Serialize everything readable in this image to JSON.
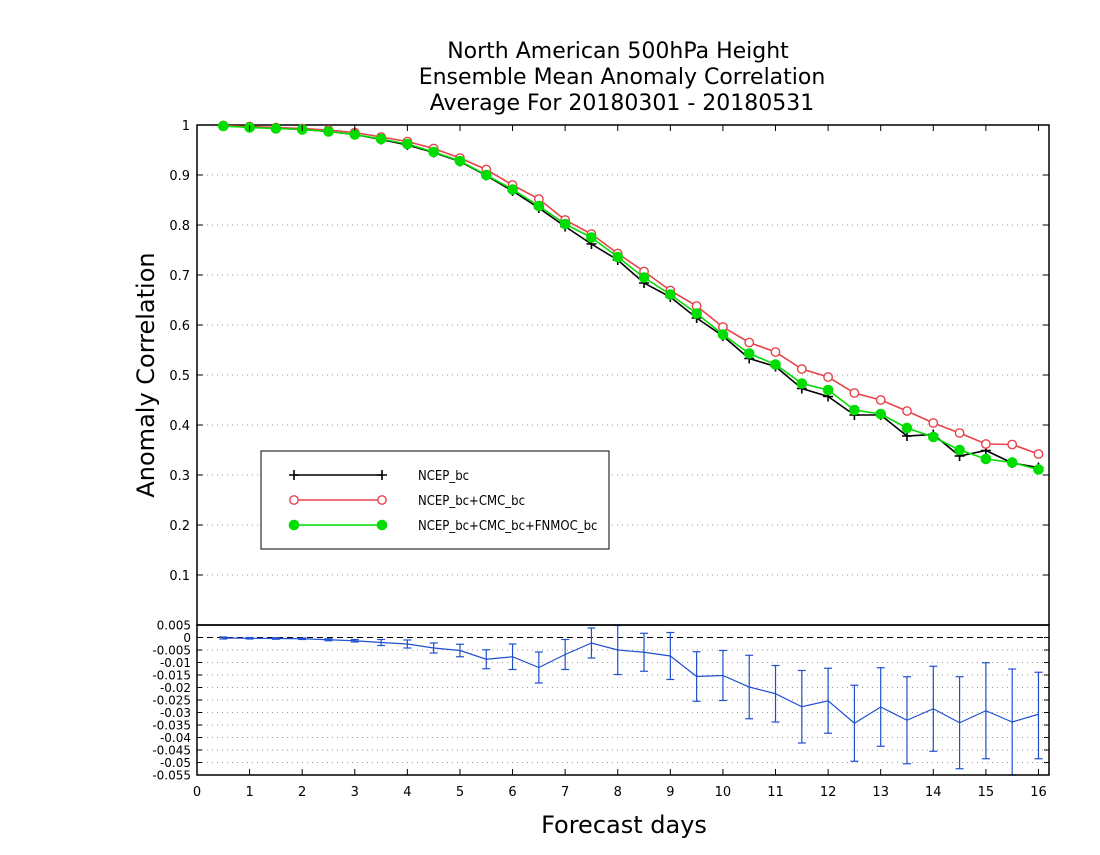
{
  "chart_data": [
    {
      "type": "line",
      "title_lines": [
        "North American 500hPa Height",
        "Ensemble Mean Anomaly Correlation",
        "Average For 20180301 - 20180531"
      ],
      "xlabel": "Forecast days",
      "ylabel": "Anomaly Correlation",
      "xlim": [
        0,
        16.2
      ],
      "ylim": [
        0,
        1
      ],
      "x_ticks": [
        "0",
        "1",
        "2",
        "3",
        "4",
        "5",
        "6",
        "7",
        "8",
        "9",
        "10",
        "11",
        "12",
        "13",
        "14",
        "15",
        "16"
      ],
      "y_ticks": [
        "0.1",
        "0.2",
        "0.3",
        "0.4",
        "0.5",
        "0.6",
        "0.7",
        "0.8",
        "0.9",
        "1"
      ],
      "grid": true,
      "legend_position": "lower-left",
      "x": [
        0.5,
        1,
        1.5,
        2,
        2.5,
        3,
        3.5,
        4,
        4.5,
        5,
        5.5,
        6,
        6.5,
        7,
        7.5,
        8,
        8.5,
        9,
        9.5,
        10,
        10.5,
        11,
        11.5,
        12,
        12.5,
        13,
        13.5,
        14,
        14.5,
        15,
        15.5,
        16
      ],
      "series": [
        {
          "name": "NCEP_bc",
          "color": "#000000",
          "marker": "plus",
          "values": [
            0.998,
            0.996,
            0.994,
            0.991,
            0.987,
            0.981,
            0.971,
            0.96,
            0.945,
            0.927,
            0.899,
            0.868,
            0.834,
            0.797,
            0.762,
            0.73,
            0.684,
            0.656,
            0.614,
            0.578,
            0.533,
            0.517,
            0.473,
            0.457,
            0.42,
            0.42,
            0.378,
            0.381,
            0.338,
            0.349,
            0.324,
            0.315
          ]
        },
        {
          "name": "NCEP_bc+CMC_bc",
          "color": "#e8424a",
          "marker": "open-circle",
          "values": [
            0.999,
            0.997,
            0.995,
            0.993,
            0.99,
            0.985,
            0.976,
            0.967,
            0.953,
            0.934,
            0.911,
            0.88,
            0.852,
            0.81,
            0.782,
            0.743,
            0.707,
            0.669,
            0.638,
            0.596,
            0.565,
            0.546,
            0.512,
            0.496,
            0.464,
            0.45,
            0.428,
            0.404,
            0.384,
            0.362,
            0.361,
            0.342
          ]
        },
        {
          "name": "NCEP_bc+CMC_bc+FNMOC_bc",
          "color": "#00dd00",
          "marker": "filled-circle",
          "values": [
            0.998,
            0.995,
            0.993,
            0.991,
            0.987,
            0.981,
            0.972,
            0.962,
            0.946,
            0.928,
            0.9,
            0.871,
            0.838,
            0.802,
            0.775,
            0.736,
            0.695,
            0.661,
            0.623,
            0.581,
            0.543,
            0.521,
            0.483,
            0.47,
            0.43,
            0.422,
            0.394,
            0.376,
            0.35,
            0.332,
            0.325,
            0.311
          ]
        }
      ]
    },
    {
      "type": "line",
      "xlabel": "Forecast days",
      "ylim": [
        -0.055,
        0.005
      ],
      "y_ticks": [
        "0.005",
        "0",
        "-0.005",
        "-0.01",
        "-0.015",
        "-0.02",
        "-0.025",
        "-0.03",
        "-0.035",
        "-0.04",
        "-0.045",
        "-0.05",
        "-0.055"
      ],
      "grid": true,
      "zero_line": "dashed",
      "error_bars": true,
      "x": [
        0.5,
        1,
        1.5,
        2,
        2.5,
        3,
        3.5,
        4,
        4.5,
        5,
        5.5,
        6,
        6.5,
        7,
        7.5,
        8,
        8.5,
        9,
        9.5,
        10,
        10.5,
        11,
        11.5,
        12,
        12.5,
        13,
        13.5,
        14,
        14.5,
        15,
        15.5,
        16
      ],
      "series": [
        {
          "color": "#2050d0",
          "values": [
            -0.0002,
            -0.0003,
            -0.0004,
            -0.0005,
            -0.0009,
            -0.0013,
            -0.002,
            -0.0026,
            -0.0042,
            -0.0052,
            -0.0087,
            -0.0077,
            -0.012,
            -0.0068,
            -0.0022,
            -0.005,
            -0.0059,
            -0.0074,
            -0.0156,
            -0.0152,
            -0.0198,
            -0.0225,
            -0.0277,
            -0.0253,
            -0.0343,
            -0.0278,
            -0.0331,
            -0.0285,
            -0.0341,
            -0.0293,
            -0.0338,
            -0.0307
          ],
          "error_low": [
            -0.0006,
            -0.0006,
            -0.0007,
            -0.0008,
            -0.0013,
            -0.0018,
            -0.0032,
            -0.0042,
            -0.0062,
            -0.0077,
            -0.0125,
            -0.0128,
            -0.0182,
            -0.0128,
            -0.0082,
            -0.0148,
            -0.0135,
            -0.0168,
            -0.0255,
            -0.0252,
            -0.0325,
            -0.0338,
            -0.0422,
            -0.0383,
            -0.0495,
            -0.0435,
            -0.0505,
            -0.0455,
            -0.0525,
            -0.0485,
            -0.055,
            -0.0485
          ],
          "error_high": [
            0.0002,
            0.0,
            -0.0001,
            -0.0002,
            -0.0005,
            -0.0008,
            -0.0008,
            -0.001,
            -0.0022,
            -0.0027,
            -0.0049,
            -0.0026,
            -0.0058,
            -0.0008,
            0.0038,
            0.0048,
            0.0017,
            0.002,
            -0.0057,
            -0.0052,
            -0.0071,
            -0.0112,
            -0.0132,
            -0.0123,
            -0.0191,
            -0.0121,
            -0.0157,
            -0.0115,
            -0.0157,
            -0.0101,
            -0.0126,
            -0.0139
          ]
        }
      ]
    }
  ]
}
